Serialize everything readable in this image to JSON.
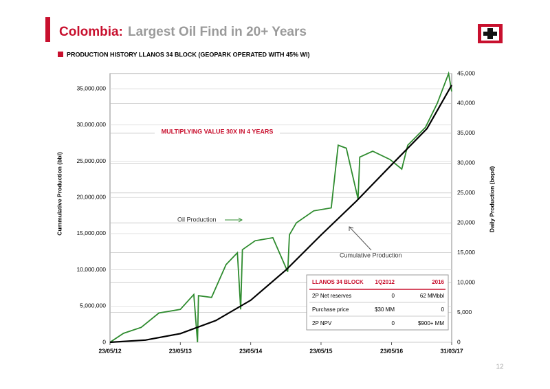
{
  "slide": {
    "title_prefix": "Colombia:",
    "title": "Largest Oil Find in 20+ Years",
    "page": "12"
  },
  "chart_data": {
    "type": "line",
    "title": "PRODUCTION HISTORY LLANOS 34 BLOCK (GEOPARK OPERATED WITH 45% WI)",
    "annotation": "MULTIPLYING VALUE 30X IN 4 YEARS",
    "ylabel": "Cummulative Production (bbl)",
    "y2label": "Daily Production (bopd)",
    "xlim": [
      "23/05/12",
      "31/03/17"
    ],
    "xticks": [
      "23/05/12",
      "23/05/13",
      "23/05/14",
      "23/05/15",
      "23/05/16",
      "31/03/17"
    ],
    "ylim": [
      0,
      37100000
    ],
    "yticks": [
      0,
      {
        "value": 5000000,
        "label": "5,000,000"
      },
      {
        "value": 10000000,
        "label": "10,000,000"
      },
      {
        "value": 15000000,
        "label": "15,000,000"
      },
      {
        "value": 20000000,
        "label": "20,000,000"
      },
      {
        "value": 25000000,
        "label": "25,000,000"
      },
      {
        "value": 30000000,
        "label": "30,000,000"
      },
      {
        "value": 35000000,
        "label": "35,000,000"
      }
    ],
    "y2lim": [
      0,
      45000
    ],
    "y2ticks": [
      0,
      {
        "value": 5000,
        "label": "5,000"
      },
      {
        "value": 10000,
        "label": "10,000"
      },
      {
        "value": 15000,
        "label": "15,000"
      },
      {
        "value": 20000,
        "label": "20,000"
      },
      {
        "value": 25000,
        "label": "25,000"
      },
      {
        "value": 30000,
        "label": "30,000"
      },
      {
        "value": 35000,
        "label": "35,000"
      },
      {
        "value": 40000,
        "label": "40,000"
      },
      {
        "value": 45000,
        "label": "45,000"
      }
    ],
    "grid": true,
    "series": [
      {
        "name": "Oil Production",
        "color": "#2e8b2e",
        "axis": "y2",
        "x": [
          "23/05/12",
          "01/08/12",
          "01/11/12",
          "01/02/13",
          "23/05/13",
          "01/08/13",
          "20/08/13",
          "25/08/13",
          "01/11/13",
          "15/01/14",
          "15/03/14",
          "01/04/14",
          "10/04/14",
          "15/06/14",
          "15/09/14",
          "01/12/14",
          "10/12/14",
          "15/01/15",
          "15/04/15",
          "15/07/15",
          "20/08/15",
          "01/10/15",
          "01/12/15",
          "10/12/15",
          "15/02/16",
          "15/05/16",
          "15/07/16",
          "15/08/16",
          "15/11/16",
          "15/01/17",
          "15/03/17",
          "31/03/17"
        ],
        "values": [
          0,
          1500,
          2500,
          4900,
          5500,
          8000,
          0,
          7800,
          7500,
          13000,
          15000,
          5500,
          15500,
          17000,
          17500,
          11800,
          18000,
          20000,
          22000,
          22500,
          33000,
          32500,
          24000,
          31000,
          32000,
          30600,
          29000,
          33000,
          36000,
          40000,
          45000,
          42000
        ]
      },
      {
        "name": "Cumulative Production",
        "color": "#000000",
        "axis": "y",
        "x": [
          "23/05/12",
          "23/11/12",
          "23/05/13",
          "23/11/13",
          "23/05/14",
          "23/11/14",
          "23/05/15",
          "23/11/15",
          "23/05/16",
          "23/11/16",
          "31/03/17"
        ],
        "values": [
          0,
          300000,
          1200000,
          3000000,
          5800000,
          10000000,
          14800000,
          19500000,
          24500000,
          29500000,
          35500000
        ]
      }
    ],
    "table": {
      "header": [
        "LLANOS 34 BLOCK",
        "1Q2012",
        "2016"
      ],
      "rows": [
        [
          "2P Net reserves",
          "0",
          "62 MMbbl"
        ],
        [
          "Purchase price",
          "$30 MM",
          "0"
        ],
        [
          "2P NPV",
          "0",
          "$900+ MM"
        ]
      ]
    }
  }
}
